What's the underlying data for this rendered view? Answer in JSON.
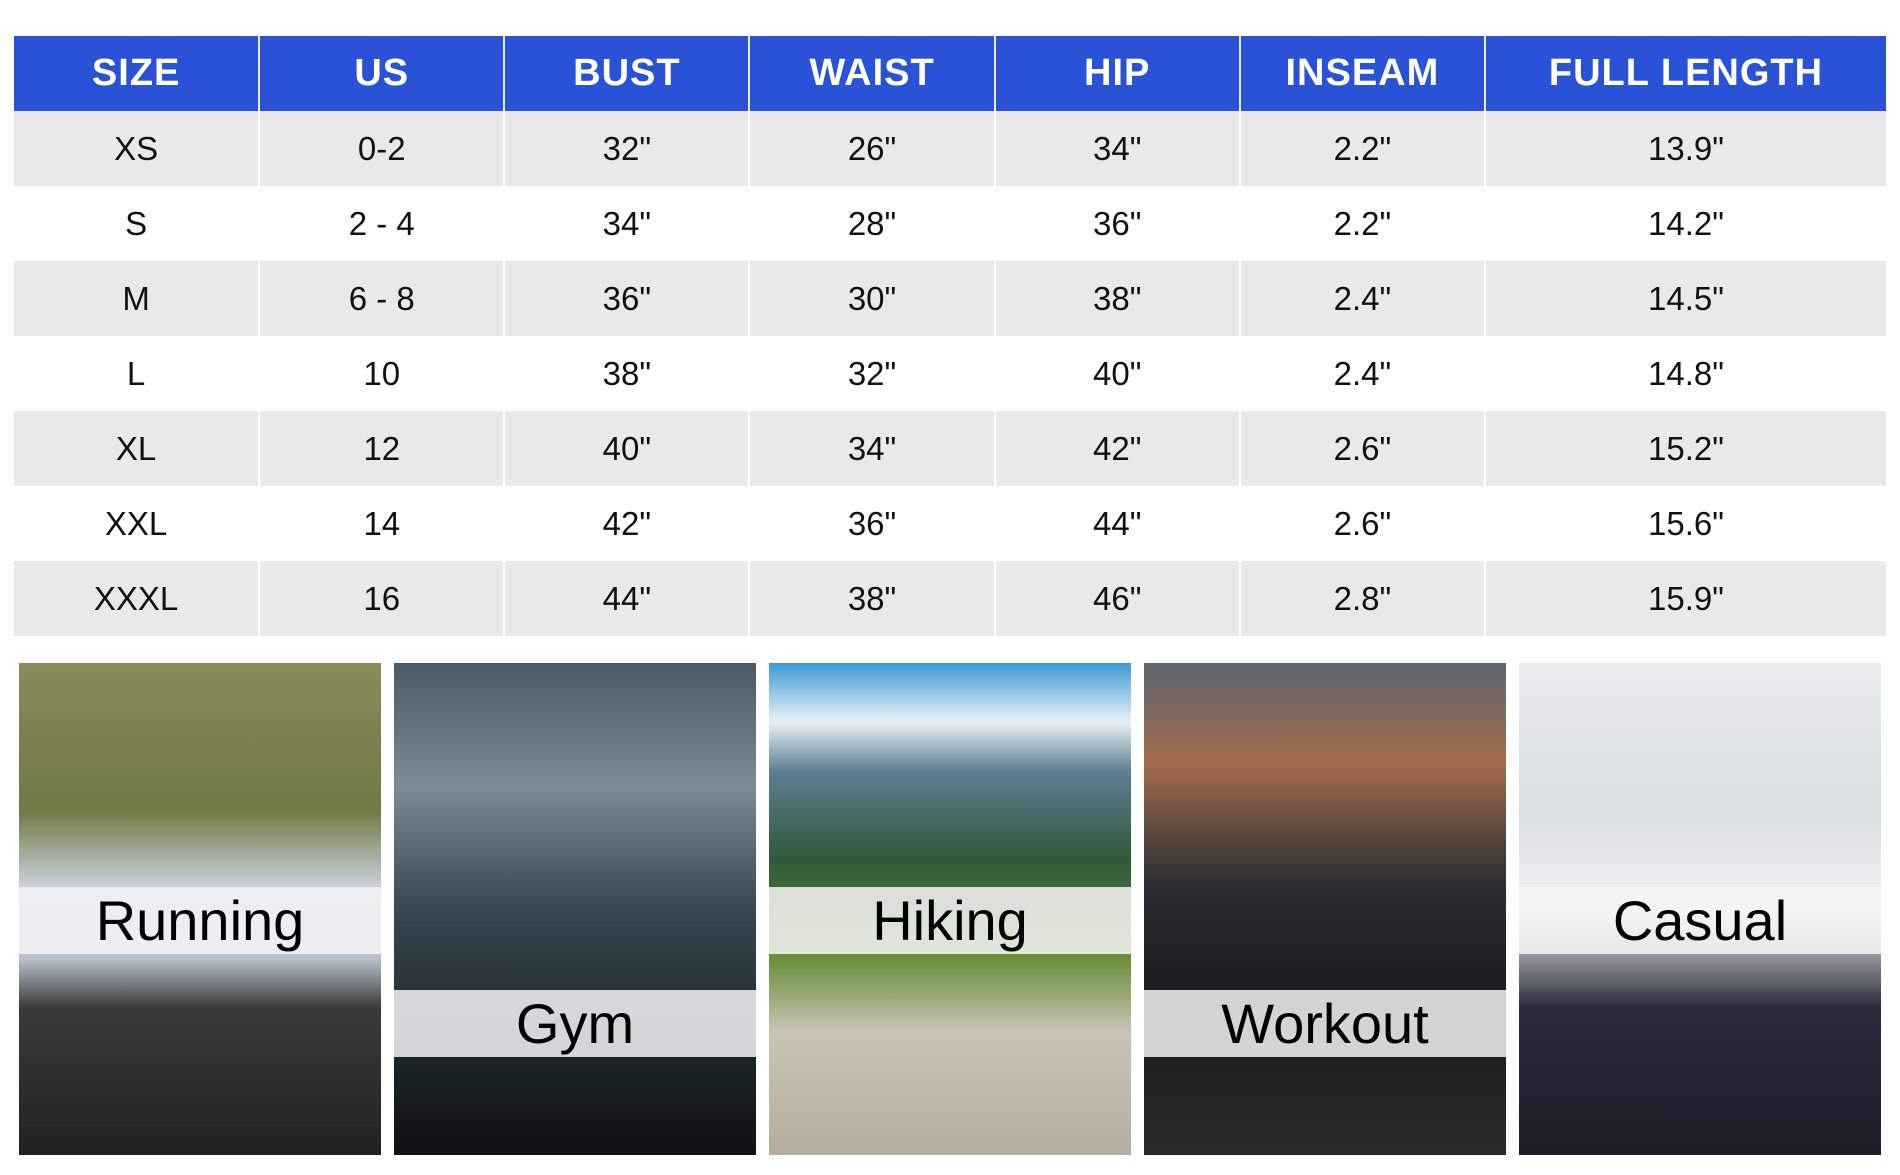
{
  "size_chart": {
    "headers": [
      "SIZE",
      "US",
      "BUST",
      "WAIST",
      "HIP",
      "INSEAM",
      "FULL  LENGTH"
    ],
    "rows": [
      [
        "XS",
        "0-2",
        "32\"",
        "26\"",
        "34\"",
        "2.2\"",
        "13.9\""
      ],
      [
        "S",
        "2 - 4",
        "34\"",
        "28\"",
        "36\"",
        "2.2\"",
        "14.2\""
      ],
      [
        "M",
        "6 - 8",
        "36\"",
        "30\"",
        "38\"",
        "2.4\"",
        "14.5\""
      ],
      [
        "L",
        "10",
        "38\"",
        "32\"",
        "40\"",
        "2.4\"",
        "14.8\""
      ],
      [
        "XL",
        "12",
        "40\"",
        "34\"",
        "42\"",
        "2.6\"",
        "15.2\""
      ],
      [
        "XXL",
        "14",
        "42\"",
        "36\"",
        "44\"",
        "2.6\"",
        "15.6\""
      ],
      [
        "XXXL",
        "16",
        "44\"",
        "38\"",
        "46\"",
        "2.8\"",
        "15.9\""
      ]
    ],
    "header_color": "#2a52d6"
  },
  "activities": [
    {
      "label": "Running"
    },
    {
      "label": "Gym"
    },
    {
      "label": "Hiking"
    },
    {
      "label": "Workout"
    },
    {
      "label": "Casual"
    }
  ]
}
